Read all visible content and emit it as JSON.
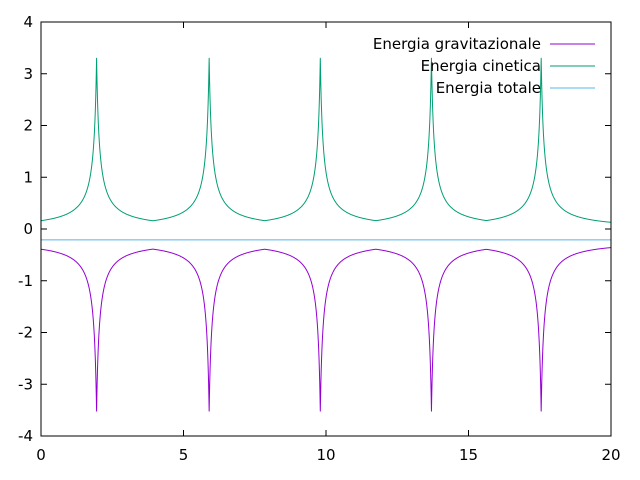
{
  "chart_data": {
    "type": "line",
    "title": "",
    "xlabel": "",
    "ylabel": "",
    "xlim": [
      0,
      20
    ],
    "ylim": [
      -4,
      4
    ],
    "xticks": [
      "0",
      "5",
      "10",
      "15",
      "20"
    ],
    "yticks": [
      "4",
      "3",
      "2",
      "1",
      "0",
      "-1",
      "-2",
      "-3",
      "-4"
    ],
    "grid": false,
    "legend_position": "top-right",
    "peak_times": [
      1.95,
      5.9,
      9.8,
      13.7,
      17.55
    ],
    "series": [
      {
        "name": "Energia gravitazionale",
        "color": "#9400d3",
        "baseline": -0.23,
        "peak": -3.52
      },
      {
        "name": "Energia cinetica",
        "color": "#009e73",
        "baseline": 0.0,
        "peak": 3.3
      },
      {
        "name": "Energia totale",
        "color": "#56b4e9",
        "constant": -0.21
      }
    ]
  }
}
